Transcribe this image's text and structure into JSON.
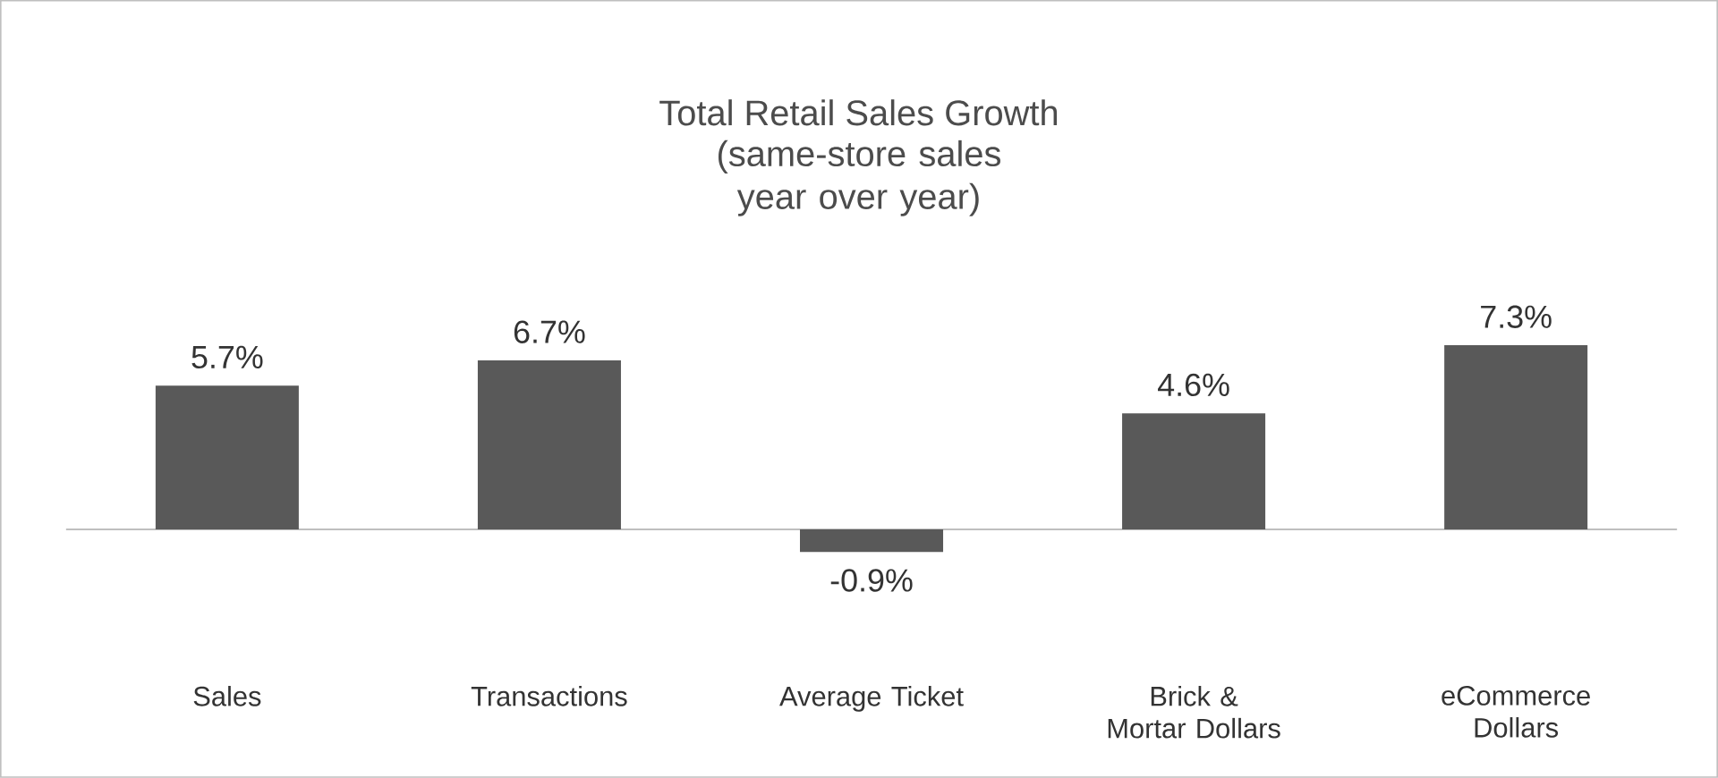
{
  "chart_data": {
    "type": "bar",
    "title": "Total Retail Sales Growth",
    "subtitle": "(same-store sales year over year)",
    "categories": [
      "Sales",
      "Transactions",
      "Average Ticket",
      "Brick & Mortar Dollars",
      "eCommerce Dollars"
    ],
    "values": [
      5.7,
      6.7,
      -0.9,
      4.6,
      7.3
    ],
    "value_labels": [
      "5.7%",
      "6.7%",
      "-0.9%",
      "4.6%",
      "7.3%"
    ],
    "color": "#595959"
  }
}
